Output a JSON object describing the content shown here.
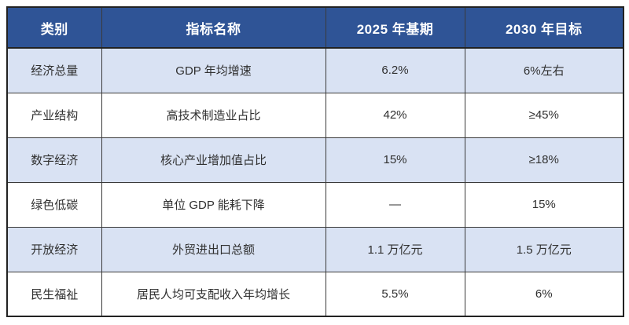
{
  "table": {
    "headers": {
      "category": "类别",
      "indicator": "指标名称",
      "baseline": "2025 年基期",
      "target": "2030 年目标"
    },
    "rows": [
      {
        "category": "经济总量",
        "indicator": "GDP 年均增速",
        "baseline": "6.2%",
        "target": "6%左右"
      },
      {
        "category": "产业结构",
        "indicator": "高技术制造业占比",
        "baseline": "42%",
        "target": "≥45%"
      },
      {
        "category": "数字经济",
        "indicator": "核心产业增加值占比",
        "baseline": "15%",
        "target": "≥18%"
      },
      {
        "category": "绿色低碳",
        "indicator": "单位 GDP 能耗下降",
        "baseline": "—",
        "target": "15%"
      },
      {
        "category": "开放经济",
        "indicator": "外贸进出口总额",
        "baseline": "1.1 万亿元",
        "target": "1.5 万亿元"
      },
      {
        "category": "民生福祉",
        "indicator": "居民人均可支配收入年均增长",
        "baseline": "5.5%",
        "target": "6%"
      }
    ],
    "colors": {
      "header_bg": "#2F5496",
      "header_text": "#FFFFFF",
      "row_alt_bg": "#D9E2F3",
      "row_bg": "#FFFFFF",
      "border_outer": "#222222",
      "border_inner": "#3A3A3A",
      "body_text": "#303030"
    }
  }
}
